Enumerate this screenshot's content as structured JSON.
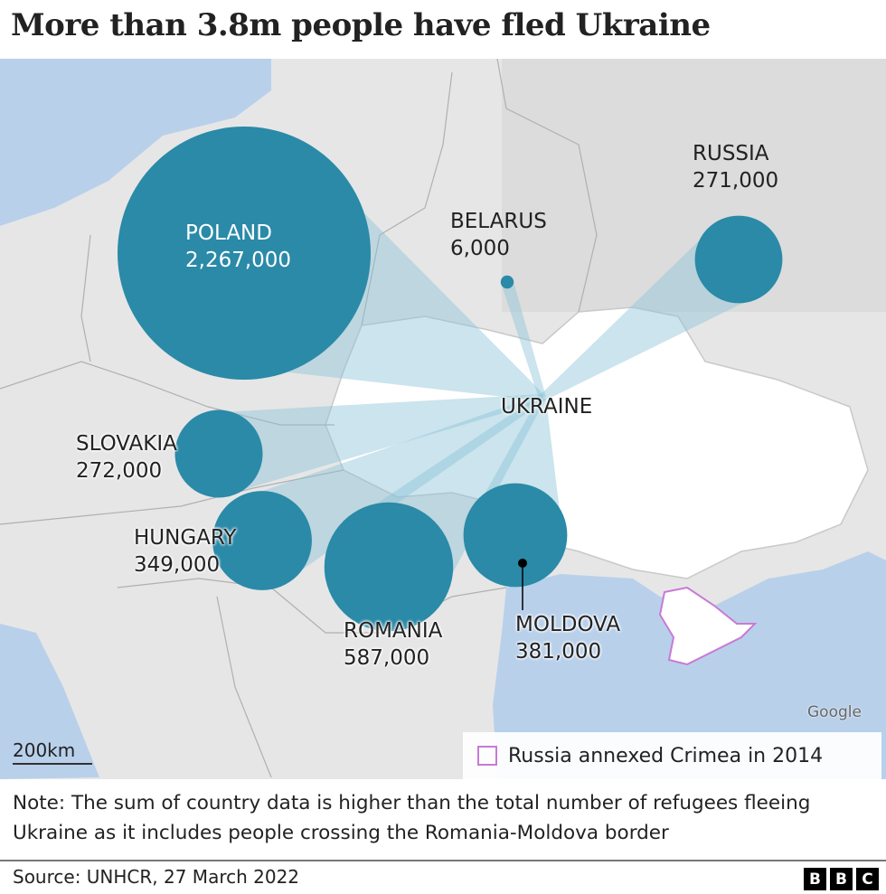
{
  "title": "More than 3.8m people have fled Ukraine",
  "map": {
    "center_label": "UKRAINE",
    "colors": {
      "bubble": "#2a8aa8",
      "flow": "#7fbfd4",
      "land": "#e6e6e6",
      "sea": "#b9d0ea",
      "ukraine": "#ffffff",
      "crimea_outline": "#c77ad6"
    },
    "countries": [
      {
        "name": "POLAND",
        "value_label": "2,267,000",
        "value": 2267000
      },
      {
        "name": "RUSSIA",
        "value_label": "271,000",
        "value": 271000
      },
      {
        "name": "BELARUS",
        "value_label": "6,000",
        "value": 6000
      },
      {
        "name": "SLOVAKIA",
        "value_label": "272,000",
        "value": 272000
      },
      {
        "name": "HUNGARY",
        "value_label": "349,000",
        "value": 349000
      },
      {
        "name": "ROMANIA",
        "value_label": "587,000",
        "value": 587000
      },
      {
        "name": "MOLDOVA",
        "value_label": "381,000",
        "value": 381000
      }
    ],
    "scale_label": "200km",
    "attribution": "Google",
    "legend": {
      "label": "Russia annexed Crimea in 2014"
    }
  },
  "note": "Note: The sum of country data is higher than the total number of refugees fleeing Ukraine as it includes people crossing the Romania-Moldova border",
  "source": "Source: UNHCR, 27 March 2022",
  "logo": [
    "B",
    "B",
    "C"
  ]
}
